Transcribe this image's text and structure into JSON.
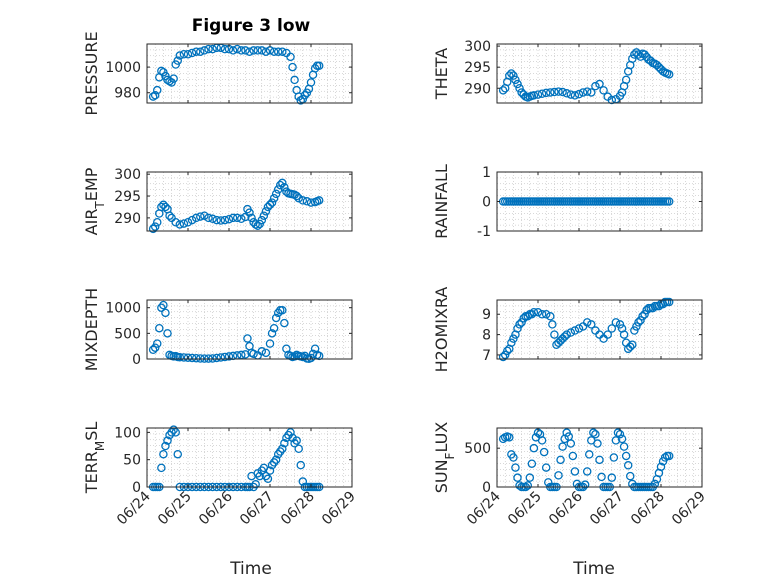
{
  "figure": {
    "title": "Figure 3 low",
    "marker_color": "#0072BD",
    "axis_color": "#262626",
    "grid": true,
    "x_ticks": [
      "06/24",
      "06/25",
      "06/26",
      "06/27",
      "06/28",
      "06/29"
    ],
    "x_label": "Time"
  },
  "chart_data": [
    {
      "type": "scatter",
      "ylabel_main": "PRESSURE",
      "ylabel_sub": "",
      "ylabel_after": "",
      "ylim": [
        972,
        1018
      ],
      "yticks": [
        980,
        1000
      ],
      "xlim": [
        0,
        5
      ],
      "x": [
        0.15,
        0.2,
        0.25,
        0.3,
        0.35,
        0.4,
        0.45,
        0.5,
        0.55,
        0.6,
        0.65,
        0.7,
        0.75,
        0.8,
        0.9,
        1.0,
        1.1,
        1.2,
        1.3,
        1.4,
        1.5,
        1.6,
        1.7,
        1.8,
        1.9,
        2.0,
        2.1,
        2.2,
        2.3,
        2.4,
        2.5,
        2.6,
        2.7,
        2.8,
        2.9,
        3.0,
        3.1,
        3.2,
        3.3,
        3.4,
        3.5,
        3.55,
        3.6,
        3.65,
        3.7,
        3.75,
        3.8,
        3.85,
        3.9,
        3.95,
        4.0,
        4.05,
        4.1,
        4.15,
        4.2
      ],
      "y": [
        977,
        978,
        982,
        992,
        997,
        996,
        993,
        990,
        989,
        988,
        991,
        1002,
        1005,
        1009,
        1010,
        1010,
        1011,
        1012,
        1012,
        1013,
        1014,
        1014,
        1015,
        1015,
        1014,
        1014,
        1013,
        1014,
        1013,
        1013,
        1012,
        1013,
        1013,
        1013,
        1012,
        1013,
        1012,
        1012,
        1012,
        1011,
        1008,
        1000,
        990,
        982,
        977,
        974,
        975,
        978,
        980,
        983,
        988,
        994,
        999,
        1001,
        1001
      ]
    },
    {
      "type": "scatter",
      "ylabel_main": "THETA",
      "ylabel_sub": "",
      "ylabel_after": "",
      "ylim": [
        286.5,
        300.5
      ],
      "yticks": [
        290,
        295,
        300
      ],
      "xlim": [
        0,
        5
      ],
      "x": [
        0.15,
        0.2,
        0.25,
        0.3,
        0.35,
        0.4,
        0.45,
        0.5,
        0.55,
        0.6,
        0.65,
        0.7,
        0.75,
        0.8,
        0.85,
        0.9,
        1.0,
        1.1,
        1.2,
        1.3,
        1.4,
        1.5,
        1.6,
        1.7,
        1.8,
        1.9,
        2.0,
        2.1,
        2.2,
        2.3,
        2.4,
        2.5,
        2.6,
        2.7,
        2.8,
        2.9,
        3.0,
        3.05,
        3.1,
        3.15,
        3.2,
        3.25,
        3.3,
        3.35,
        3.4,
        3.45,
        3.5,
        3.55,
        3.6,
        3.65,
        3.7,
        3.75,
        3.8,
        3.85,
        3.9,
        3.95,
        4.0,
        4.05,
        4.1,
        4.15,
        4.2
      ],
      "y": [
        289.5,
        290,
        291.5,
        293,
        293.5,
        293,
        292,
        291,
        290,
        289,
        288.5,
        288,
        287.8,
        288,
        288.2,
        288.3,
        288.5,
        288.7,
        288.9,
        289,
        289.1,
        289.2,
        289.1,
        288.8,
        288.5,
        288.3,
        288.6,
        289,
        289.2,
        289,
        290.5,
        291,
        289.5,
        288,
        287.2,
        287.4,
        288.2,
        289,
        290.5,
        292,
        294,
        295.5,
        297,
        298,
        298.5,
        298,
        297.5,
        298.2,
        298,
        297.4,
        296.8,
        296.5,
        296,
        295.8,
        295.5,
        295,
        294.5,
        294,
        293.7,
        293.5,
        293.3
      ]
    },
    {
      "type": "scatter",
      "ylabel_main": "AIR",
      "ylabel_sub": "T",
      "ylabel_after": "EMP",
      "ylim": [
        287,
        300.5
      ],
      "yticks": [
        290,
        295,
        300
      ],
      "xlim": [
        0,
        5
      ],
      "x": [
        0.15,
        0.2,
        0.25,
        0.3,
        0.35,
        0.4,
        0.45,
        0.5,
        0.55,
        0.6,
        0.7,
        0.8,
        0.9,
        1.0,
        1.1,
        1.2,
        1.3,
        1.4,
        1.5,
        1.6,
        1.7,
        1.8,
        1.9,
        2.0,
        2.1,
        2.2,
        2.3,
        2.4,
        2.45,
        2.5,
        2.55,
        2.6,
        2.65,
        2.7,
        2.75,
        2.8,
        2.85,
        2.9,
        2.95,
        3.0,
        3.05,
        3.1,
        3.15,
        3.2,
        3.25,
        3.3,
        3.35,
        3.4,
        3.45,
        3.5,
        3.55,
        3.6,
        3.65,
        3.7,
        3.8,
        3.9,
        4.0,
        4.1,
        4.15,
        4.2
      ],
      "y": [
        287.5,
        288,
        289,
        291,
        292.5,
        293,
        292.5,
        292,
        290.5,
        290,
        289,
        288.5,
        288.7,
        289,
        289.5,
        290,
        290.3,
        290.5,
        290,
        289.8,
        289.5,
        289.4,
        289.5,
        289.7,
        290,
        290,
        289.8,
        290.2,
        292,
        291.2,
        290,
        289,
        288.5,
        288.2,
        288.6,
        289.5,
        290.5,
        291.5,
        292.5,
        293,
        293.5,
        294.5,
        295.5,
        296.5,
        297.5,
        298,
        297,
        296,
        295.6,
        295.5,
        295.4,
        295.3,
        295,
        294.5,
        294,
        293.8,
        293.5,
        293.6,
        293.8,
        294
      ]
    },
    {
      "type": "scatter",
      "ylabel_main": "RAINFALL",
      "ylabel_sub": "",
      "ylabel_after": "",
      "ylim": [
        -1,
        1
      ],
      "yticks": [
        -1,
        0,
        1
      ],
      "xlim": [
        0,
        5
      ],
      "x_range": [
        0.15,
        4.2
      ],
      "x_step": 0.05,
      "constant_value": 0
    },
    {
      "type": "scatter",
      "ylabel_main": "MIXDEPTH",
      "ylabel_sub": "",
      "ylabel_after": "",
      "ylim": [
        0,
        1150
      ],
      "yticks": [
        0,
        500,
        1000
      ],
      "xlim": [
        0,
        5
      ],
      "x": [
        0.15,
        0.2,
        0.25,
        0.3,
        0.35,
        0.4,
        0.45,
        0.5,
        0.55,
        0.6,
        0.65,
        0.7,
        0.75,
        0.8,
        0.9,
        1.0,
        1.1,
        1.2,
        1.3,
        1.4,
        1.5,
        1.6,
        1.7,
        1.8,
        1.9,
        2.0,
        2.1,
        2.2,
        2.3,
        2.4,
        2.45,
        2.5,
        2.55,
        2.6,
        2.7,
        2.8,
        2.9,
        3.0,
        3.05,
        3.1,
        3.15,
        3.2,
        3.25,
        3.3,
        3.35,
        3.4,
        3.45,
        3.5,
        3.55,
        3.6,
        3.65,
        3.7,
        3.75,
        3.8,
        3.85,
        3.9,
        3.95,
        4.0,
        4.05,
        4.1,
        4.15,
        4.2
      ],
      "y": [
        180,
        220,
        300,
        600,
        1000,
        1050,
        900,
        500,
        80,
        60,
        50,
        55,
        40,
        35,
        30,
        25,
        20,
        15,
        10,
        8,
        8,
        10,
        20,
        30,
        40,
        50,
        60,
        70,
        80,
        90,
        400,
        250,
        120,
        100,
        70,
        150,
        120,
        300,
        500,
        600,
        800,
        900,
        950,
        950,
        700,
        200,
        80,
        60,
        40,
        50,
        80,
        60,
        50,
        40,
        60,
        10,
        5,
        20,
        100,
        200,
        80,
        60
      ]
    },
    {
      "type": "scatter",
      "ylabel_main": "H2OMIXRA",
      "ylabel_sub": "",
      "ylabel_after": "",
      "ylim": [
        6.8,
        9.7
      ],
      "yticks": [
        7,
        8,
        9
      ],
      "xlim": [
        0,
        5
      ],
      "x": [
        0.15,
        0.2,
        0.25,
        0.3,
        0.35,
        0.4,
        0.45,
        0.5,
        0.55,
        0.6,
        0.65,
        0.7,
        0.75,
        0.8,
        0.85,
        0.9,
        1.0,
        1.1,
        1.2,
        1.3,
        1.35,
        1.4,
        1.45,
        1.5,
        1.55,
        1.6,
        1.65,
        1.7,
        1.8,
        1.9,
        2.0,
        2.1,
        2.2,
        2.3,
        2.4,
        2.5,
        2.6,
        2.7,
        2.8,
        2.9,
        3.0,
        3.05,
        3.1,
        3.15,
        3.2,
        3.25,
        3.3,
        3.35,
        3.4,
        3.45,
        3.5,
        3.55,
        3.6,
        3.65,
        3.7,
        3.75,
        3.8,
        3.85,
        3.9,
        3.95,
        4.0,
        4.05,
        4.1,
        4.15,
        4.2
      ],
      "y": [
        6.9,
        7.0,
        7.2,
        7.3,
        7.6,
        7.8,
        8.0,
        8.3,
        8.5,
        8.6,
        8.8,
        8.9,
        8.9,
        9.0,
        9.0,
        9.1,
        9.1,
        9.0,
        9.0,
        8.9,
        8.5,
        8.0,
        7.5,
        7.6,
        7.7,
        7.8,
        7.9,
        8.0,
        8.1,
        8.2,
        8.3,
        8.4,
        8.6,
        8.5,
        8.2,
        8.0,
        7.8,
        8.0,
        8.3,
        8.6,
        8.5,
        8.3,
        8.0,
        7.6,
        7.3,
        7.4,
        7.5,
        8.2,
        8.4,
        8.6,
        8.7,
        8.9,
        9.0,
        9.2,
        9.3,
        9.3,
        9.3,
        9.4,
        9.4,
        9.4,
        9.5,
        9.5,
        9.6,
        9.6,
        9.6
      ]
    },
    {
      "type": "scatter",
      "ylabel_main": "TERR",
      "ylabel_sub": "M",
      "ylabel_after": "SL",
      "ylim": [
        0,
        108
      ],
      "yticks": [
        0,
        50,
        100
      ],
      "xlim": [
        0,
        5
      ],
      "x": [
        0.15,
        0.2,
        0.25,
        0.3,
        0.35,
        0.4,
        0.45,
        0.5,
        0.55,
        0.6,
        0.65,
        0.7,
        0.75,
        0.8,
        0.9,
        1.0,
        1.1,
        1.2,
        1.3,
        1.4,
        1.5,
        1.6,
        1.7,
        1.8,
        1.9,
        2.0,
        2.1,
        2.2,
        2.3,
        2.4,
        2.45,
        2.5,
        2.55,
        2.6,
        2.65,
        2.7,
        2.75,
        2.8,
        2.85,
        2.9,
        2.95,
        3.0,
        3.05,
        3.1,
        3.15,
        3.2,
        3.25,
        3.3,
        3.35,
        3.4,
        3.45,
        3.5,
        3.55,
        3.6,
        3.65,
        3.7,
        3.75,
        3.8,
        3.85,
        3.9,
        3.95,
        4.0,
        4.05,
        4.1,
        4.15,
        4.2
      ],
      "y": [
        0,
        0,
        0,
        0,
        35,
        60,
        75,
        85,
        95,
        100,
        105,
        100,
        60,
        0,
        0,
        0,
        0,
        0,
        0,
        0,
        0,
        0,
        0,
        0,
        0,
        0,
        0,
        0,
        0,
        0,
        0,
        0,
        20,
        0,
        5,
        25,
        20,
        30,
        35,
        20,
        15,
        30,
        40,
        45,
        50,
        60,
        65,
        70,
        80,
        90,
        95,
        100,
        90,
        80,
        85,
        70,
        40,
        10,
        0,
        0,
        0,
        0,
        0,
        0,
        0,
        0
      ]
    },
    {
      "type": "scatter",
      "ylabel_main": "SUN",
      "ylabel_sub": "F",
      "ylabel_after": "LUX",
      "ylim": [
        0,
        760
      ],
      "yticks": [
        0,
        500
      ],
      "xlim": [
        0,
        5
      ],
      "x": [
        0.15,
        0.2,
        0.25,
        0.3,
        0.35,
        0.4,
        0.45,
        0.5,
        0.55,
        0.6,
        0.65,
        0.7,
        0.75,
        0.8,
        0.85,
        0.9,
        0.95,
        1.0,
        1.05,
        1.1,
        1.15,
        1.2,
        1.25,
        1.3,
        1.35,
        1.4,
        1.45,
        1.5,
        1.55,
        1.6,
        1.65,
        1.7,
        1.75,
        1.8,
        1.85,
        1.9,
        1.95,
        2.0,
        2.05,
        2.1,
        2.15,
        2.2,
        2.25,
        2.3,
        2.35,
        2.4,
        2.45,
        2.5,
        2.55,
        2.6,
        2.65,
        2.7,
        2.75,
        2.8,
        2.85,
        2.9,
        2.95,
        3.0,
        3.05,
        3.1,
        3.15,
        3.2,
        3.25,
        3.3,
        3.35,
        3.4,
        3.45,
        3.5,
        3.55,
        3.6,
        3.65,
        3.7,
        3.75,
        3.8,
        3.85,
        3.9,
        3.95,
        4.0,
        4.05,
        4.1,
        4.15,
        4.2
      ],
      "y": [
        620,
        640,
        650,
        640,
        420,
        380,
        250,
        120,
        20,
        0,
        0,
        0,
        20,
        120,
        300,
        500,
        640,
        700,
        680,
        600,
        450,
        250,
        60,
        0,
        0,
        0,
        0,
        150,
        350,
        520,
        620,
        700,
        650,
        560,
        400,
        200,
        40,
        0,
        0,
        0,
        30,
        200,
        420,
        600,
        700,
        680,
        560,
        350,
        130,
        0,
        0,
        0,
        0,
        120,
        380,
        600,
        700,
        680,
        620,
        520,
        400,
        280,
        140,
        40,
        0,
        0,
        0,
        0,
        0,
        0,
        0,
        0,
        0,
        0,
        40,
        100,
        180,
        260,
        330,
        380,
        400,
        400
      ]
    }
  ]
}
